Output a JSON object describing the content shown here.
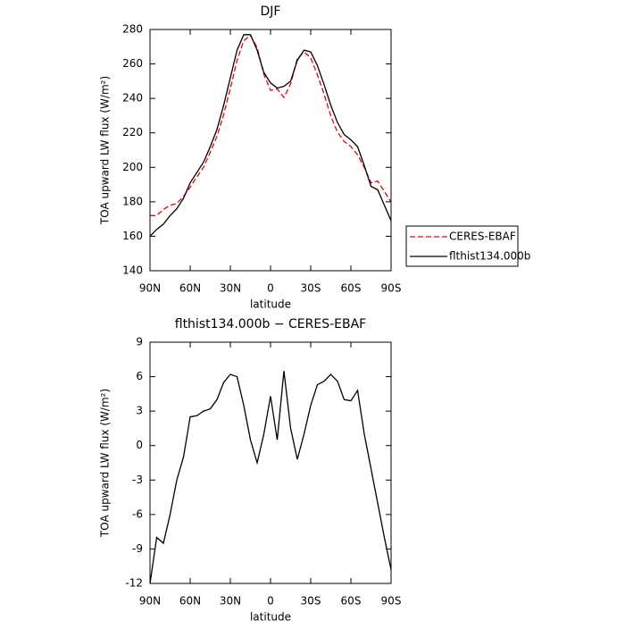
{
  "chart_data": [
    {
      "type": "line",
      "title": "DJF",
      "ylabel": "TOA upward LW flux (W/m²)",
      "xlabel": "latitude",
      "x": [
        90,
        85,
        80,
        75,
        70,
        65,
        60,
        55,
        50,
        45,
        40,
        35,
        30,
        25,
        20,
        15,
        10,
        5,
        0,
        -5,
        -10,
        -15,
        -20,
        -25,
        -30,
        -35,
        -40,
        -45,
        -50,
        -55,
        -60,
        -65,
        -70,
        -75,
        -80,
        -85,
        -90
      ],
      "series": [
        {
          "name": "CERES-EBAF",
          "color": "#e8000b",
          "dash": true,
          "values": [
            172,
            172,
            175.5,
            178,
            179,
            183,
            188.5,
            194.4,
            200,
            208.8,
            218,
            230.5,
            245.8,
            262,
            273.5,
            276.5,
            269.5,
            254,
            244.7,
            245.5,
            240.5,
            248.5,
            263.2,
            267,
            263.5,
            253.7,
            242.4,
            229.8,
            220.4,
            215,
            212.1,
            207.2,
            200,
            191,
            192,
            186,
            179.8
          ]
        },
        {
          "name": "flthist134.000b",
          "color": "#000000",
          "dash": false,
          "values": [
            160,
            164,
            167,
            172,
            176,
            182,
            191,
            197,
            203,
            212,
            222,
            236,
            252,
            268,
            277,
            277,
            268,
            255,
            249,
            246,
            247,
            250,
            262,
            268,
            267,
            259,
            248,
            236,
            226,
            219,
            216,
            212,
            201,
            189,
            187,
            178,
            169
          ]
        }
      ],
      "xlim": [
        90,
        -90
      ],
      "xticks": [
        {
          "value": 90,
          "label": "90N"
        },
        {
          "value": 60,
          "label": "60N"
        },
        {
          "value": 30,
          "label": "30N"
        },
        0,
        {
          "value": -30,
          "label": "30S"
        },
        {
          "value": -60,
          "label": "60S"
        },
        {
          "value": -90,
          "label": "90S"
        }
      ],
      "ylim": [
        140,
        280
      ],
      "yticks": [
        140,
        160,
        180,
        200,
        220,
        240,
        260,
        280
      ],
      "grid": false,
      "legend": "right"
    },
    {
      "type": "line",
      "title": "flthist134.000b − CERES-EBAF",
      "ylabel": "TOA upward LW flux (W/m²)",
      "xlabel": "latitude",
      "x": [
        90,
        85,
        80,
        75,
        70,
        65,
        60,
        55,
        50,
        45,
        40,
        35,
        30,
        25,
        20,
        15,
        10,
        5,
        0,
        -5,
        -10,
        -15,
        -20,
        -25,
        -30,
        -35,
        -40,
        -45,
        -50,
        -55,
        -60,
        -65,
        -70,
        -75,
        -80,
        -85,
        -90
      ],
      "series": [
        {
          "color": "#000000",
          "dash": false,
          "values": [
            -12,
            -8,
            -8.5,
            -6,
            -3,
            -1,
            2.5,
            2.6,
            3,
            3.2,
            4,
            5.5,
            6.2,
            6,
            3.5,
            0.5,
            -1.5,
            1,
            4.3,
            0.5,
            6.5,
            1.5,
            -1.2,
            1,
            3.5,
            5.3,
            5.6,
            6.2,
            5.6,
            4,
            3.9,
            4.8,
            1,
            -2,
            -5,
            -8,
            -10.8
          ]
        }
      ],
      "xlim": [
        90,
        -90
      ],
      "xticks": [
        {
          "value": 90,
          "label": "90N"
        },
        {
          "value": 60,
          "label": "60N"
        },
        {
          "value": 30,
          "label": "30N"
        },
        0,
        {
          "value": -30,
          "label": "30S"
        },
        {
          "value": -60,
          "label": "60S"
        },
        {
          "value": -90,
          "label": "90S"
        }
      ],
      "ylim": [
        -12,
        9
      ],
      "yticks": [
        -12,
        -9,
        -6,
        -3,
        0,
        3,
        6,
        9
      ],
      "grid": false
    }
  ]
}
